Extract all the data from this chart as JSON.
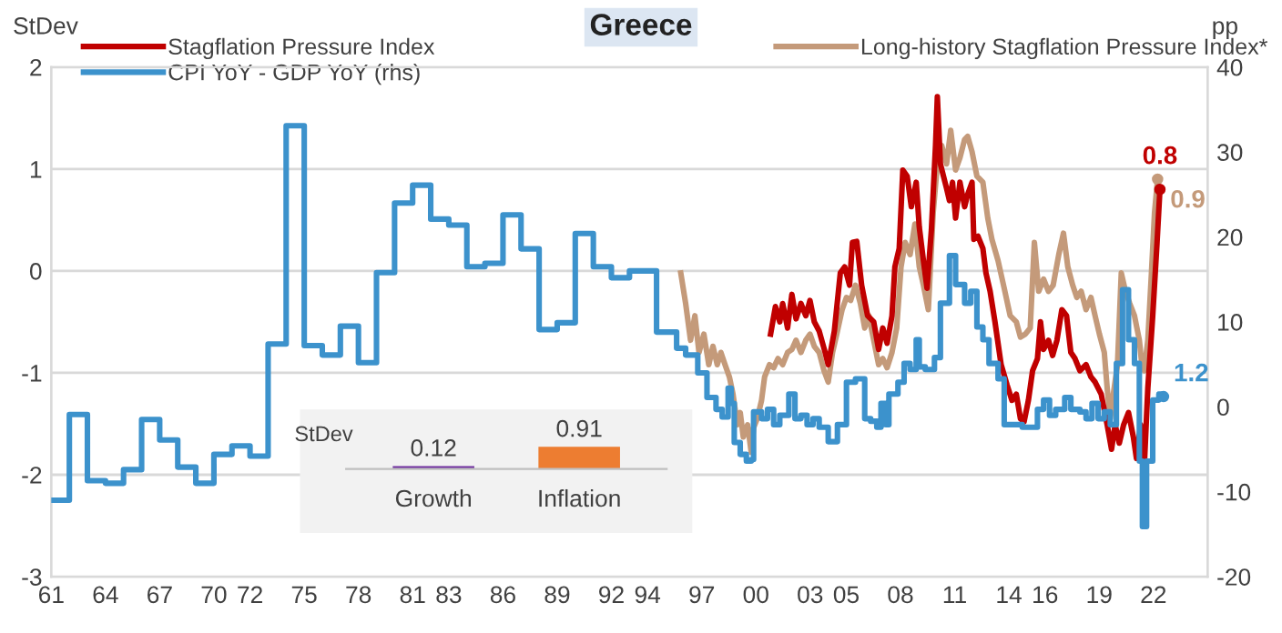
{
  "chart_data": [
    {
      "type": "line",
      "title": "Greece",
      "ylabel": "StDev",
      "y2label": "pp",
      "xlim": [
        1961,
        2025
      ],
      "ylim": [
        -3,
        2
      ],
      "yticks": [
        -3,
        -2,
        -1,
        0,
        1,
        2
      ],
      "y2lim": [
        -20,
        40
      ],
      "y2ticks": [
        -20,
        -10,
        0,
        10,
        20,
        30,
        40
      ],
      "xticks": [
        {
          "value": 1961,
          "label": "61"
        },
        {
          "value": 1964,
          "label": "64"
        },
        {
          "value": 1967,
          "label": "67"
        },
        {
          "value": 1970,
          "label": "70"
        },
        {
          "value": 1972,
          "label": "72"
        },
        {
          "value": 1975,
          "label": "75"
        },
        {
          "value": 1978,
          "label": "78"
        },
        {
          "value": 1981,
          "label": "81"
        },
        {
          "value": 1983,
          "label": "83"
        },
        {
          "value": 1986,
          "label": "86"
        },
        {
          "value": 1989,
          "label": "89"
        },
        {
          "value": 1992,
          "label": "92"
        },
        {
          "value": 1994,
          "label": "94"
        },
        {
          "value": 1997,
          "label": "97"
        },
        {
          "value": 2000,
          "label": "00"
        },
        {
          "value": 2003,
          "label": "03"
        },
        {
          "value": 2005,
          "label": "05"
        },
        {
          "value": 2008,
          "label": "08"
        },
        {
          "value": 2011,
          "label": "11"
        },
        {
          "value": 2014,
          "label": "14"
        },
        {
          "value": 2016,
          "label": "16"
        },
        {
          "value": 2019,
          "label": "19"
        },
        {
          "value": 2022,
          "label": "22"
        }
      ],
      "grid": "y",
      "legend": "top",
      "series": [
        {
          "name": "Stagflation Pressure Index",
          "color": "#c00000",
          "type": "line",
          "x": [
            2000.81,
            2001.08,
            2001.32,
            2001.48,
            2001.75,
            2001.99,
            2002.22,
            2002.49,
            2002.76,
            2002.99,
            2003.23,
            2003.5,
            2003.83,
            2004.0,
            2004.34,
            2004.67,
            2004.91,
            2005.18,
            2005.34,
            2005.58,
            2005.85,
            2006.18,
            2006.52,
            2006.79,
            2007.02,
            2007.26,
            2007.53,
            2007.69,
            2007.93,
            2008.13,
            2008.37,
            2008.6,
            2008.87,
            2009.04,
            2009.27,
            2009.47,
            2009.71,
            2009.94,
            2010.04,
            2010.21,
            2010.38,
            2010.55,
            2010.71,
            2010.88,
            2011.05,
            2011.29,
            2011.55,
            2011.72,
            2011.96,
            2012.06,
            2012.29,
            2012.56,
            2012.73,
            2012.96,
            2013.23,
            2013.57,
            2013.9,
            2014.17,
            2014.41,
            2014.64,
            2014.84,
            2015.08,
            2015.31,
            2015.58,
            2015.75,
            2015.92,
            2016.19,
            2016.42,
            2016.66,
            2016.93,
            2017.19,
            2017.43,
            2017.66,
            2017.93,
            2018.27,
            2018.54,
            2018.77,
            2019.11,
            2019.44,
            2019.68,
            2019.88,
            2020.11,
            2020.35,
            2020.62,
            2020.89,
            2021.06,
            2021.29,
            2021.49,
            2021.69,
            2021.96,
            2022.2,
            2022.36
          ],
          "values": [
            -0.62,
            -0.35,
            -0.5,
            -0.32,
            -0.56,
            -0.23,
            -0.47,
            -0.32,
            -0.44,
            -0.29,
            -0.5,
            -0.59,
            -0.8,
            -0.92,
            -0.59,
            -0.02,
            0.04,
            -0.14,
            0.28,
            0.29,
            -0.14,
            -0.44,
            -0.5,
            -0.77,
            -0.56,
            -0.71,
            -0.44,
            0.04,
            0.22,
            0.99,
            0.93,
            0.63,
            0.87,
            0.43,
            0.1,
            -0.17,
            0.4,
            1.23,
            1.71,
            1.05,
            0.93,
            0.81,
            0.69,
            0.87,
            0.52,
            0.87,
            0.63,
            0.75,
            0.87,
            0.31,
            0.34,
            0.22,
            -0.02,
            -0.2,
            -0.5,
            -0.92,
            -1.12,
            -1.27,
            -1.21,
            -1.45,
            -1.48,
            -1.27,
            -0.98,
            -0.86,
            -0.5,
            -0.77,
            -0.68,
            -0.83,
            -0.68,
            -0.38,
            -0.44,
            -0.8,
            -0.86,
            -0.98,
            -0.92,
            -1.04,
            -1.09,
            -1.21,
            -1.51,
            -1.75,
            -1.51,
            -1.69,
            -1.51,
            -1.39,
            -1.63,
            -1.84,
            -1.51,
            -1.93,
            -1.15,
            -0.44,
            0.28,
            0.8
          ],
          "value_labels": [
            null,
            null,
            null,
            null,
            null,
            null,
            null,
            null,
            null,
            null,
            null,
            null,
            null,
            null,
            null,
            null,
            null,
            null,
            null,
            null,
            null,
            null,
            null,
            null,
            null,
            null,
            null,
            null,
            null,
            null,
            null,
            null,
            null,
            null,
            null,
            null,
            null,
            null,
            null,
            null,
            null,
            null,
            null,
            null,
            null,
            null,
            null,
            null,
            null,
            null,
            null,
            null,
            null,
            null,
            null,
            null,
            null,
            null,
            null,
            null,
            null,
            null,
            null,
            null,
            null,
            null,
            null,
            null,
            null,
            null,
            null,
            null,
            null,
            null,
            null,
            null,
            null,
            null,
            null,
            null,
            null,
            null,
            null,
            null,
            null,
            null,
            null,
            null,
            null,
            null,
            null,
            "0.8"
          ]
        },
        {
          "name": "CPI YoY - GDP YoY (rhs)",
          "color": "#3c92cc",
          "type": "step",
          "axis": "y2",
          "x": [
            1961,
            1962,
            1963,
            1964,
            1965,
            1966,
            1967,
            1968,
            1969,
            1970,
            1971,
            1972,
            1973,
            1974,
            1975,
            1976,
            1977,
            1978,
            1979,
            1980,
            1981,
            1982,
            1983,
            1984,
            1985,
            1986,
            1987,
            1988,
            1989,
            1990,
            1991,
            1992,
            1993,
            1994.5,
            1995.44,
            1995.61,
            1996.11,
            1996.78,
            1997.29,
            1997.79,
            1998.13,
            1998.46,
            1998.63,
            1998.8,
            1999.13,
            1999.47,
            1999.74,
            1999.87,
            2000.31,
            2000.64,
            2000.98,
            2001.32,
            2001.82,
            2002.16,
            2002.49,
            2002.83,
            2003.16,
            2003.5,
            2004.0,
            2004.51,
            2005.01,
            2005.51,
            2006.02,
            2006.35,
            2006.69,
            2006.92,
            2007.19,
            2007.36,
            2007.86,
            2008.2,
            2008.53,
            2008.87,
            2009.04,
            2009.37,
            2009.88,
            2010.21,
            2010.71,
            2011.05,
            2011.55,
            2011.89,
            2012.23,
            2012.56,
            2012.9,
            2013.4,
            2013.74,
            2014.24,
            2014.74,
            2015.25,
            2015.58,
            2015.92,
            2016.25,
            2016.59,
            2017.09,
            2017.43,
            2017.93,
            2018.27,
            2018.6,
            2018.94,
            2019.28,
            2019.61,
            2019.95,
            2020.29,
            2020.62,
            2020.95,
            2021.22,
            2021.39,
            2021.62,
            2021.96,
            2022.3,
            2022.56
          ],
          "values": [
            -11.0,
            -0.9,
            -8.7,
            -9.0,
            -7.4,
            -1.5,
            -3.9,
            -7.1,
            -9.0,
            -5.6,
            -4.6,
            -5.8,
            7.4,
            33.1,
            7.2,
            6.1,
            9.5,
            5.2,
            15.8,
            24.0,
            26.1,
            22.1,
            21.4,
            16.5,
            16.9,
            22.6,
            18.6,
            9.1,
            9.9,
            20.4,
            16.5,
            15.2,
            16.0,
            8.8,
            8.8,
            6.9,
            6.1,
            4.0,
            1.1,
            -0.3,
            -1.2,
            2.2,
            0.4,
            -4.2,
            -5.6,
            -6.4,
            -6.2,
            -0.6,
            -1.4,
            -0.3,
            -2.1,
            -1.0,
            1.5,
            -1.4,
            -1.0,
            -2.1,
            -1.4,
            -2.4,
            -4.1,
            -2.1,
            2.9,
            3.3,
            -1.4,
            -1.7,
            -2.4,
            0.4,
            -2.1,
            1.5,
            2.9,
            5.1,
            4.4,
            7.9,
            4.7,
            4.4,
            5.8,
            12.2,
            17.8,
            14.4,
            12.2,
            13.6,
            9.4,
            7.9,
            5.1,
            3.3,
            -2.1,
            -2.1,
            -2.4,
            -2.4,
            -0.3,
            0.8,
            -1.0,
            -0.3,
            1.1,
            -0.3,
            -0.6,
            -1.4,
            0.4,
            -1.4,
            -0.6,
            -2.1,
            5.1,
            13.8,
            7.9,
            5.1,
            -6.4,
            -14.1,
            -6.4,
            0.8,
            1.5,
            1.2
          ],
          "value_labels": [
            null,
            null,
            null,
            null,
            null,
            null,
            null,
            null,
            null,
            null,
            null,
            null,
            null,
            null,
            null,
            null,
            null,
            null,
            null,
            null,
            null,
            null,
            null,
            null,
            null,
            null,
            null,
            null,
            null,
            null,
            null,
            null,
            null,
            null,
            null,
            null,
            null,
            null,
            null,
            null,
            null,
            null,
            null,
            null,
            null,
            null,
            null,
            null,
            null,
            null,
            null,
            null,
            null,
            null,
            null,
            null,
            null,
            null,
            null,
            null,
            null,
            null,
            null,
            null,
            null,
            null,
            null,
            null,
            null,
            null,
            null,
            null,
            null,
            null,
            null,
            null,
            null,
            null,
            null,
            null,
            null,
            null,
            null,
            null,
            null,
            null,
            null,
            null,
            null,
            null,
            null,
            null,
            null,
            null,
            null,
            null,
            null,
            null,
            null,
            null,
            null,
            null,
            null,
            null,
            null,
            null,
            null,
            null,
            null,
            "1.2"
          ]
        },
        {
          "name": "Long-history Stagflation Pressure Index*",
          "color": "#c49a7a",
          "type": "line",
          "x": [
            1995.84,
            1996.11,
            1996.38,
            1996.62,
            1996.85,
            1997.12,
            1997.39,
            1997.62,
            1997.86,
            1998.06,
            1998.29,
            1998.53,
            1998.73,
            1998.97,
            1999.13,
            1999.3,
            1999.54,
            1999.74,
            1999.87,
            2000.07,
            2000.31,
            2000.48,
            2000.75,
            2000.98,
            2001.22,
            2001.48,
            2001.75,
            2001.99,
            2002.22,
            2002.49,
            2002.76,
            2002.99,
            2003.23,
            2003.5,
            2003.77,
            2004.0,
            2004.24,
            2004.51,
            2004.77,
            2005.01,
            2005.24,
            2005.51,
            2005.78,
            2006.02,
            2006.25,
            2006.52,
            2006.79,
            2007.02,
            2007.26,
            2007.53,
            2007.79,
            2008.03,
            2008.26,
            2008.53,
            2008.8,
            2009.04,
            2009.27,
            2009.54,
            2009.81,
            2010.04,
            2010.28,
            2010.55,
            2010.78,
            2011.05,
            2011.29,
            2011.55,
            2011.72,
            2011.96,
            2012.23,
            2012.56,
            2012.83,
            2013.06,
            2013.4,
            2013.74,
            2014.07,
            2014.41,
            2014.64,
            2014.91,
            2015.18,
            2015.41,
            2015.65,
            2015.92,
            2016.19,
            2016.45,
            2016.76,
            2017.02,
            2017.26,
            2017.53,
            2017.76,
            2018.0,
            2018.27,
            2018.54,
            2018.77,
            2019.01,
            2019.28,
            2019.44,
            2019.61,
            2019.78,
            2020.01,
            2020.22,
            2020.45,
            2020.69,
            2020.95,
            2021.22,
            2021.36,
            2021.49,
            2021.69,
            2021.89,
            2022.06,
            2022.23
          ],
          "values": [
            -0.02,
            -0.32,
            -0.68,
            -0.44,
            -0.8,
            -0.62,
            -0.92,
            -0.74,
            -0.92,
            -0.8,
            -0.92,
            -1.04,
            -1.21,
            -1.51,
            -1.39,
            -1.63,
            -1.51,
            -1.78,
            -1.54,
            -1.45,
            -1.27,
            -1.04,
            -0.92,
            -0.95,
            -0.86,
            -0.92,
            -0.8,
            -0.77,
            -0.68,
            -0.8,
            -0.68,
            -0.62,
            -0.74,
            -0.8,
            -0.98,
            -1.09,
            -0.8,
            -0.59,
            -0.38,
            -0.26,
            -0.29,
            -0.14,
            -0.32,
            -0.56,
            -0.44,
            -0.68,
            -0.92,
            -0.86,
            -0.95,
            -0.8,
            -0.56,
            0.04,
            0.28,
            0.16,
            0.46,
            0.04,
            -0.14,
            -0.38,
            0.57,
            1.05,
            1.23,
            1.05,
            1.38,
            0.99,
            1.11,
            1.29,
            1.32,
            1.17,
            0.93,
            0.87,
            0.52,
            0.31,
            0.1,
            -0.17,
            -0.44,
            -0.5,
            -0.65,
            -0.62,
            -0.56,
            0.28,
            -0.2,
            -0.08,
            -0.2,
            -0.14,
            0.16,
            0.37,
            0.04,
            -0.14,
            -0.26,
            -0.2,
            -0.38,
            -0.26,
            -0.44,
            -0.62,
            -0.8,
            -1.15,
            -1.45,
            -1.21,
            -0.92,
            -0.02,
            -0.2,
            -0.32,
            -0.44,
            -0.68,
            -0.92,
            -0.98,
            -0.68,
            -0.02,
            0.57,
            0.9
          ],
          "value_labels": [
            null,
            null,
            null,
            null,
            null,
            null,
            null,
            null,
            null,
            null,
            null,
            null,
            null,
            null,
            null,
            null,
            null,
            null,
            null,
            null,
            null,
            null,
            null,
            null,
            null,
            null,
            null,
            null,
            null,
            null,
            null,
            null,
            null,
            null,
            null,
            null,
            null,
            null,
            null,
            null,
            null,
            null,
            null,
            null,
            null,
            null,
            null,
            null,
            null,
            null,
            null,
            null,
            null,
            null,
            null,
            null,
            null,
            null,
            null,
            null,
            null,
            null,
            null,
            null,
            null,
            null,
            null,
            null,
            null,
            null,
            null,
            null,
            null,
            null,
            null,
            null,
            null,
            null,
            null,
            null,
            null,
            null,
            null,
            null,
            null,
            null,
            null,
            null,
            null,
            null,
            null,
            null,
            null,
            null,
            null,
            null,
            null,
            null,
            null,
            null,
            null,
            null,
            null,
            null,
            null,
            null,
            null,
            null,
            null,
            "0.9"
          ]
        }
      ]
    },
    {
      "type": "bar",
      "ylabel": "StDev",
      "categories": [
        "Growth",
        "Inflation"
      ],
      "values": [
        0.12,
        0.91
      ],
      "colors": [
        "#7030a0",
        "#ed7d31"
      ],
      "data_labels": true,
      "tick_labels": "x"
    }
  ]
}
